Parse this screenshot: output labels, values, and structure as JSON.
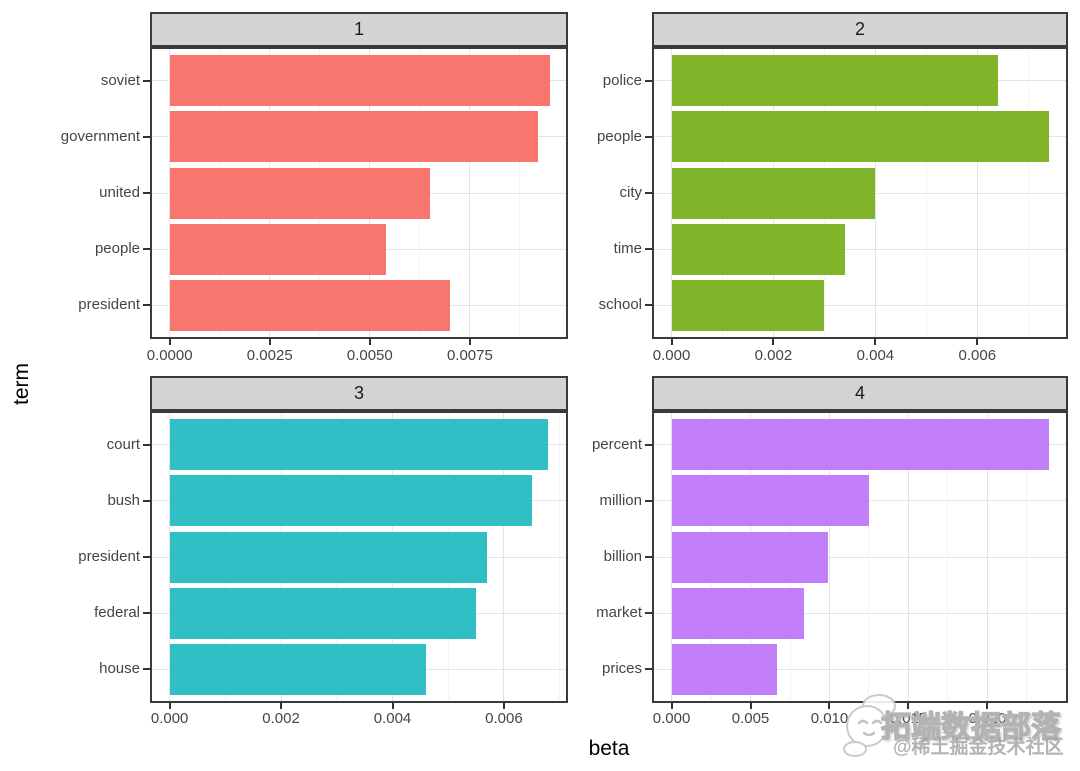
{
  "style": {
    "strip_fill": "#D4D4D4",
    "panel_border": "#3A3A3A",
    "grid_major": "#E4E4E4",
    "grid_minor": "#F3F3F3",
    "tick_label_color": "#454545",
    "watermark_gray": "#a6a6a6"
  },
  "axis_titles": {
    "x": "beta",
    "y": "term"
  },
  "watermark": {
    "sticker_icon": "wechat-smiley-sticker",
    "brand_text": "拓端数据部落",
    "community_text": "@稀土掘金技术社区"
  },
  "chart_data": {
    "type": "bar",
    "orientation": "horizontal",
    "grid": true,
    "legend": false,
    "xlabel": "beta",
    "ylabel": "term",
    "facet_labels": [
      "1",
      "2",
      "3",
      "4"
    ],
    "facets": [
      {
        "label": "1",
        "bar_color": "#F8766D",
        "categories": [
          "soviet",
          "government",
          "united",
          "people",
          "president"
        ],
        "values": [
          0.0095,
          0.0092,
          0.0065,
          0.0054,
          0.007
        ],
        "xlim": [
          0,
          0.00995
        ],
        "xticks": [
          0,
          0.0025,
          0.005,
          0.0075
        ],
        "xtick_labels": [
          "0.0000",
          "0.0025",
          "0.0050",
          "0.0075"
        ],
        "minor_ticks": [
          0.00125,
          0.00375,
          0.00625,
          0.00875
        ]
      },
      {
        "label": "2",
        "bar_color": "#7FB42B",
        "categories": [
          "police",
          "people",
          "city",
          "time",
          "school"
        ],
        "values": [
          0.0064,
          0.0074,
          0.004,
          0.0034,
          0.003
        ],
        "xlim": [
          0,
          0.00778
        ],
        "xticks": [
          0,
          0.002,
          0.004,
          0.006
        ],
        "xtick_labels": [
          "0.000",
          "0.002",
          "0.004",
          "0.006"
        ],
        "minor_ticks": [
          0.001,
          0.003,
          0.005,
          0.007
        ]
      },
      {
        "label": "3",
        "bar_color": "#2FBFC4",
        "categories": [
          "court",
          "bush",
          "president",
          "federal",
          "house"
        ],
        "values": [
          0.0068,
          0.0065,
          0.0057,
          0.0055,
          0.0046
        ],
        "xlim": [
          0,
          0.00715
        ],
        "xticks": [
          0,
          0.002,
          0.004,
          0.006
        ],
        "xtick_labels": [
          "0.000",
          "0.002",
          "0.004",
          "0.006"
        ],
        "minor_ticks": [
          0.001,
          0.003,
          0.005,
          0.007
        ]
      },
      {
        "label": "4",
        "bar_color": "#C27DF8",
        "categories": [
          "percent",
          "million",
          "billion",
          "market",
          "prices"
        ],
        "values": [
          0.0239,
          0.0125,
          0.0099,
          0.0084,
          0.0067
        ],
        "xlim": [
          0,
          0.0251
        ],
        "xticks": [
          0,
          0.005,
          0.01,
          0.015,
          0.02
        ],
        "xtick_labels": [
          "0.000",
          "0.005",
          "0.010",
          "0.015",
          "0.020"
        ],
        "minor_ticks": [
          0.0025,
          0.0075,
          0.0125,
          0.0175,
          0.0225
        ]
      }
    ]
  }
}
